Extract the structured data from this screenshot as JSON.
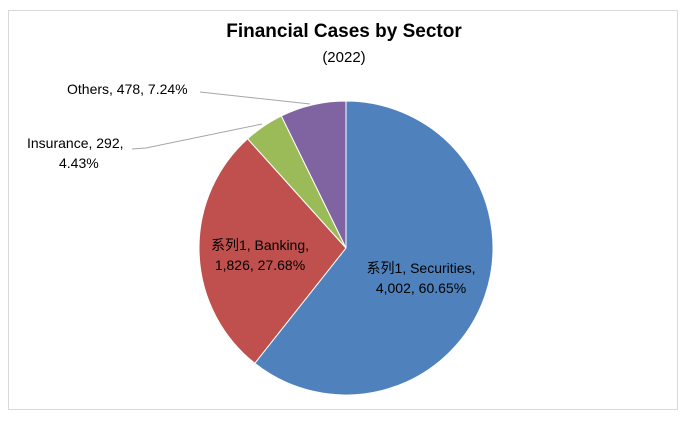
{
  "chart_data": {
    "type": "pie",
    "title": "Financial Cases by Sector",
    "subtitle": "(2022)",
    "slices": [
      {
        "label_lines": [
          "系列1, Securities,",
          "4,002, 60.65%"
        ],
        "value": 4002,
        "percent": 60.65,
        "color": "#4f81bd"
      },
      {
        "label_lines": [
          "系列1, Banking,",
          "1,826, 27.68%"
        ],
        "value": 1826,
        "percent": 27.68,
        "color": "#c0504d"
      },
      {
        "label_lines": [
          "Insurance, 292,",
          "4.43%"
        ],
        "value": 292,
        "percent": 4.43,
        "color": "#9bbb59"
      },
      {
        "label_lines": [
          "Others, 478, 7.24%"
        ],
        "value": 478,
        "percent": 7.24,
        "color": "#8064a2"
      }
    ]
  }
}
